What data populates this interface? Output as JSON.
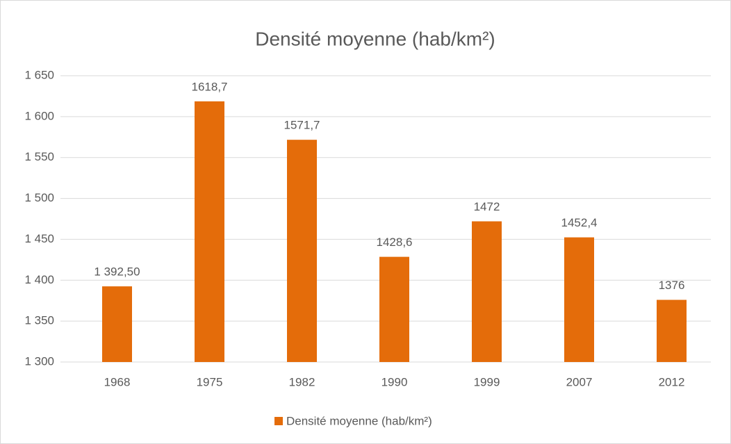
{
  "chart_data": {
    "type": "bar",
    "title": "Densité moyenne (hab/km²)",
    "categories": [
      "1968",
      "1975",
      "1982",
      "1990",
      "1999",
      "2007",
      "2012"
    ],
    "series": [
      {
        "name": "Densité moyenne (hab/km²)",
        "color": "#e46c0a",
        "values": [
          1392.5,
          1618.7,
          1571.7,
          1428.6,
          1472,
          1452.4,
          1376
        ],
        "value_labels": [
          "1 392,50",
          "1618,7",
          "1571,7",
          "1428,6",
          "1472",
          "1452,4",
          "1376"
        ]
      }
    ],
    "ylim": [
      1300,
      1650
    ],
    "yticks": [
      {
        "value": 1300,
        "label": "1 300"
      },
      {
        "value": 1350,
        "label": "1 350"
      },
      {
        "value": 1400,
        "label": "1 400"
      },
      {
        "value": 1450,
        "label": "1 450"
      },
      {
        "value": 1500,
        "label": "1 500"
      },
      {
        "value": 1550,
        "label": "1 550"
      },
      {
        "value": 1600,
        "label": "1 600"
      },
      {
        "value": 1650,
        "label": "1 650"
      }
    ],
    "grid": true,
    "legend": "bottom"
  }
}
